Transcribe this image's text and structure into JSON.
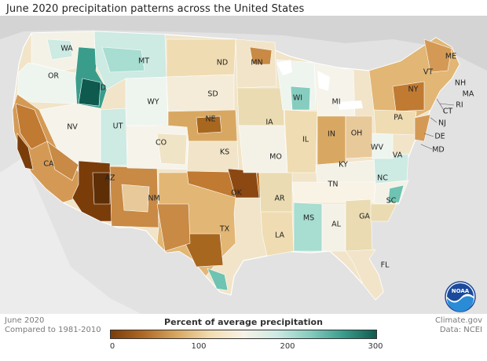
{
  "title": "June 2020 precipitation patterns across the United States",
  "footer": {
    "left_line1": "June 2020",
    "left_line2": "Compared to 1981-2010",
    "right_line1": "Climate.gov",
    "right_line2": "Data: NCEI"
  },
  "legend": {
    "title": "Percent of average precipitation",
    "ticks": [
      "0",
      "100",
      "200",
      "300"
    ],
    "colors": [
      "#7a3d0a",
      "#b06a25",
      "#d8a862",
      "#f2ddb0",
      "#f7f2e6",
      "#cdeae3",
      "#86cdbf",
      "#3a9d8c",
      "#0f5a4e"
    ]
  },
  "logo": {
    "text": "NOAA",
    "icon": "noaa-logo-icon"
  },
  "state_labels": [
    "WA",
    "OR",
    "ID",
    "MT",
    "ND",
    "MN",
    "ME",
    "VT",
    "NH",
    "MA",
    "RI",
    "CT",
    "NJ",
    "DE",
    "MD",
    "NY",
    "PA",
    "MI",
    "WI",
    "SD",
    "WY",
    "NV",
    "UT",
    "CO",
    "NE",
    "IA",
    "IL",
    "IN",
    "OH",
    "WV",
    "VA",
    "KY",
    "TN",
    "NC",
    "SC",
    "GA",
    "AL",
    "MS",
    "AR",
    "LA",
    "TX",
    "OK",
    "KS",
    "MO",
    "NM",
    "AZ",
    "CA",
    "FL"
  ]
}
